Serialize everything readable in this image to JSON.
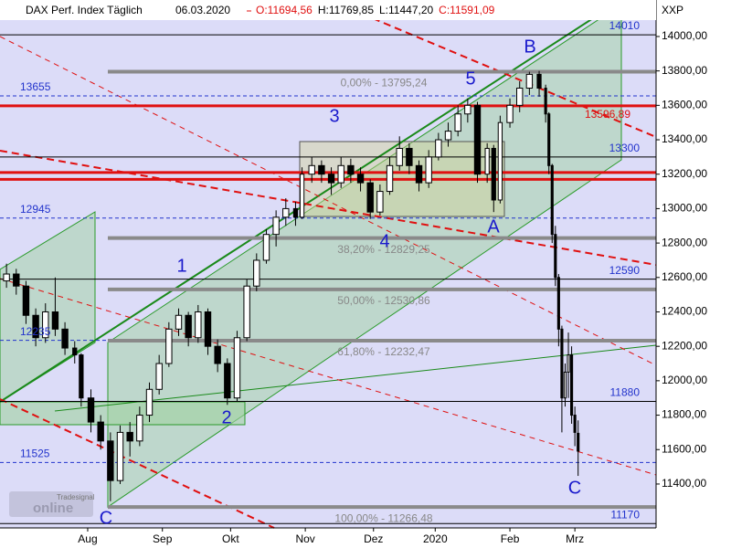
{
  "chart_data": {
    "type": "candlestick",
    "title": "DAX Perf. Index Täglich",
    "date": "06.03.2020",
    "ohlc_header": [
      "O:11694,56",
      "H:11769,85",
      "L:11447,20",
      "C:11591,09"
    ],
    "y_axis_label": "XXP",
    "logo": [
      "Tradesignal",
      "online"
    ],
    "xlim": [
      0,
      202
    ],
    "xticks": [
      {
        "value": 27,
        "label": "Aug"
      },
      {
        "value": 50,
        "label": "Sep"
      },
      {
        "value": 71,
        "label": "Okt"
      },
      {
        "value": 94,
        "label": "Nov"
      },
      {
        "value": 115,
        "label": "Dez"
      },
      {
        "value": 134,
        "label": "2020"
      },
      {
        "value": 157,
        "label": "Feb"
      },
      {
        "value": 177,
        "label": "Mrz"
      }
    ],
    "ylim": [
      11145,
      14212
    ],
    "yticks": [
      {
        "value": 11400,
        "label": "11400,00"
      },
      {
        "value": 11600,
        "label": "11600,00"
      },
      {
        "value": 11800,
        "label": "11800,00"
      },
      {
        "value": 12000,
        "label": "12000,00"
      },
      {
        "value": 12200,
        "label": "12200,00"
      },
      {
        "value": 12400,
        "label": "12400,00"
      },
      {
        "value": 12600,
        "label": "12600,00"
      },
      {
        "value": 12800,
        "label": "12800,00"
      },
      {
        "value": 13000,
        "label": "13000,00"
      },
      {
        "value": 13200,
        "label": "13200,00"
      },
      {
        "value": 13400,
        "label": "13400,00"
      },
      {
        "value": 13600,
        "label": "13600,00"
      },
      {
        "value": 13800,
        "label": "13800,00"
      },
      {
        "value": 14000,
        "label": "14000,00"
      }
    ],
    "x": [
      2,
      5,
      8,
      11,
      14,
      17,
      20,
      23,
      25,
      28,
      31,
      34,
      37,
      40,
      43,
      46,
      49,
      52,
      55,
      58,
      61,
      64,
      67,
      70,
      73,
      76,
      79,
      82,
      85,
      88,
      91,
      93,
      96,
      99,
      102,
      105,
      108,
      111,
      114,
      117,
      120,
      123,
      126,
      129,
      132,
      135,
      138,
      141,
      144,
      147,
      150,
      152,
      154,
      157,
      160,
      163,
      166,
      168,
      169,
      170,
      171,
      172,
      173,
      174,
      175,
      176,
      177,
      178
    ],
    "ohlc": [
      [
        12580,
        12680,
        12540,
        12620
      ],
      [
        12620,
        12650,
        12500,
        12550
      ],
      [
        12550,
        12580,
        12330,
        12380
      ],
      [
        12380,
        12420,
        12200,
        12250
      ],
      [
        12250,
        12450,
        12220,
        12400
      ],
      [
        12400,
        12600,
        12260,
        12300
      ],
      [
        12300,
        12340,
        12150,
        12190
      ],
      [
        12190,
        12230,
        12100,
        12150
      ],
      [
        12150,
        12160,
        11850,
        11900
      ],
      [
        11900,
        11950,
        11700,
        11760
      ],
      [
        11760,
        11800,
        11600,
        11650
      ],
      [
        11650,
        11700,
        11300,
        11420
      ],
      [
        11420,
        11740,
        11400,
        11700
      ],
      [
        11700,
        11760,
        11560,
        11650
      ],
      [
        11650,
        11850,
        11620,
        11800
      ],
      [
        11800,
        11990,
        11760,
        11950
      ],
      [
        11950,
        12150,
        11920,
        12100
      ],
      [
        12100,
        12340,
        12080,
        12300
      ],
      [
        12300,
        12420,
        12260,
        12380
      ],
      [
        12380,
        12400,
        12200,
        12250
      ],
      [
        12250,
        12440,
        12220,
        12400
      ],
      [
        12400,
        12420,
        12150,
        12200
      ],
      [
        12200,
        12240,
        12050,
        12100
      ],
      [
        12100,
        12130,
        11860,
        11900
      ],
      [
        11900,
        12290,
        11880,
        12250
      ],
      [
        12250,
        12590,
        12230,
        12550
      ],
      [
        12550,
        12740,
        12520,
        12700
      ],
      [
        12700,
        12880,
        12680,
        12850
      ],
      [
        12850,
        12990,
        12780,
        12950
      ],
      [
        12950,
        13060,
        12900,
        13000
      ],
      [
        13000,
        13040,
        12900,
        12950
      ],
      [
        12950,
        13240,
        12940,
        13200
      ],
      [
        13200,
        13300,
        13150,
        13250
      ],
      [
        13250,
        13280,
        13150,
        13200
      ],
      [
        13200,
        13240,
        13080,
        13150
      ],
      [
        13150,
        13300,
        13120,
        13250
      ],
      [
        13250,
        13290,
        13150,
        13200
      ],
      [
        13200,
        13240,
        13100,
        13150
      ],
      [
        13150,
        13170,
        12940,
        12980
      ],
      [
        12980,
        13140,
        12960,
        13100
      ],
      [
        13100,
        13300,
        13080,
        13250
      ],
      [
        13250,
        13420,
        13220,
        13350
      ],
      [
        13350,
        13380,
        13200,
        13250
      ],
      [
        13250,
        13280,
        13100,
        13150
      ],
      [
        13150,
        13340,
        13120,
        13300
      ],
      [
        13300,
        13440,
        13280,
        13400
      ],
      [
        13400,
        13500,
        13360,
        13450
      ],
      [
        13450,
        13600,
        13420,
        13550
      ],
      [
        13550,
        13640,
        13500,
        13600
      ],
      [
        13600,
        13620,
        13150,
        13200
      ],
      [
        13200,
        13380,
        13150,
        13350
      ],
      [
        13350,
        13370,
        12980,
        13050
      ],
      [
        13050,
        13540,
        13030,
        13500
      ],
      [
        13500,
        13640,
        13470,
        13600
      ],
      [
        13600,
        13740,
        13560,
        13700
      ],
      [
        13700,
        13795,
        13660,
        13780
      ],
      [
        13780,
        13800,
        13650,
        13700
      ],
      [
        13700,
        13720,
        13500,
        13550
      ],
      [
        13550,
        13560,
        13200,
        13250
      ],
      [
        13250,
        13260,
        12800,
        12850
      ],
      [
        12850,
        12900,
        12550,
        12600
      ],
      [
        12600,
        12620,
        12200,
        12300
      ],
      [
        12300,
        12320,
        11700,
        11900
      ],
      [
        11900,
        12100,
        11850,
        12050
      ],
      [
        12050,
        12280,
        11900,
        12150
      ],
      [
        12150,
        12200,
        11750,
        11800
      ],
      [
        11800,
        11850,
        11620,
        11700
      ],
      [
        11694.56,
        11769.85,
        11447.2,
        11591.09
      ]
    ],
    "levels": [
      {
        "value": 14010,
        "color": "#000000",
        "dashed": false
      },
      {
        "value": 13655,
        "color": "#2233cc",
        "dashed": true
      },
      {
        "value": 13300,
        "color": "#000000",
        "dashed": false
      },
      {
        "value": 12945,
        "color": "#2233cc",
        "dashed": true
      },
      {
        "value": 12590,
        "color": "#000000",
        "dashed": false
      },
      {
        "value": 12235,
        "color": "#2233cc",
        "dashed": true
      },
      {
        "value": 11880,
        "color": "#000000",
        "dashed": false
      },
      {
        "value": 11525,
        "color": "#2233cc",
        "dashed": true
      },
      {
        "value": 11170,
        "color": "#000000",
        "dashed": false
      }
    ],
    "red_level": {
      "value": 13596.89,
      "label": "13596,89",
      "color": "#e01010"
    },
    "resistance_lines": [
      13210,
      13170
    ],
    "fib_levels": [
      {
        "value": 13795.24,
        "label": "0,00% - 13795,24"
      },
      {
        "value": 12829.25,
        "label": "38,20% - 12829,25"
      },
      {
        "value": 12530.86,
        "label": "50,00% - 12530,86"
      },
      {
        "value": 12232.47,
        "label": "61,80% - 12232,47"
      },
      {
        "value": 11266.48,
        "label": "100,00% - 11266,48"
      }
    ],
    "wave_labels": [
      "B",
      "5",
      "3",
      "4",
      "1",
      "2",
      "C",
      "A",
      "C"
    ]
  }
}
